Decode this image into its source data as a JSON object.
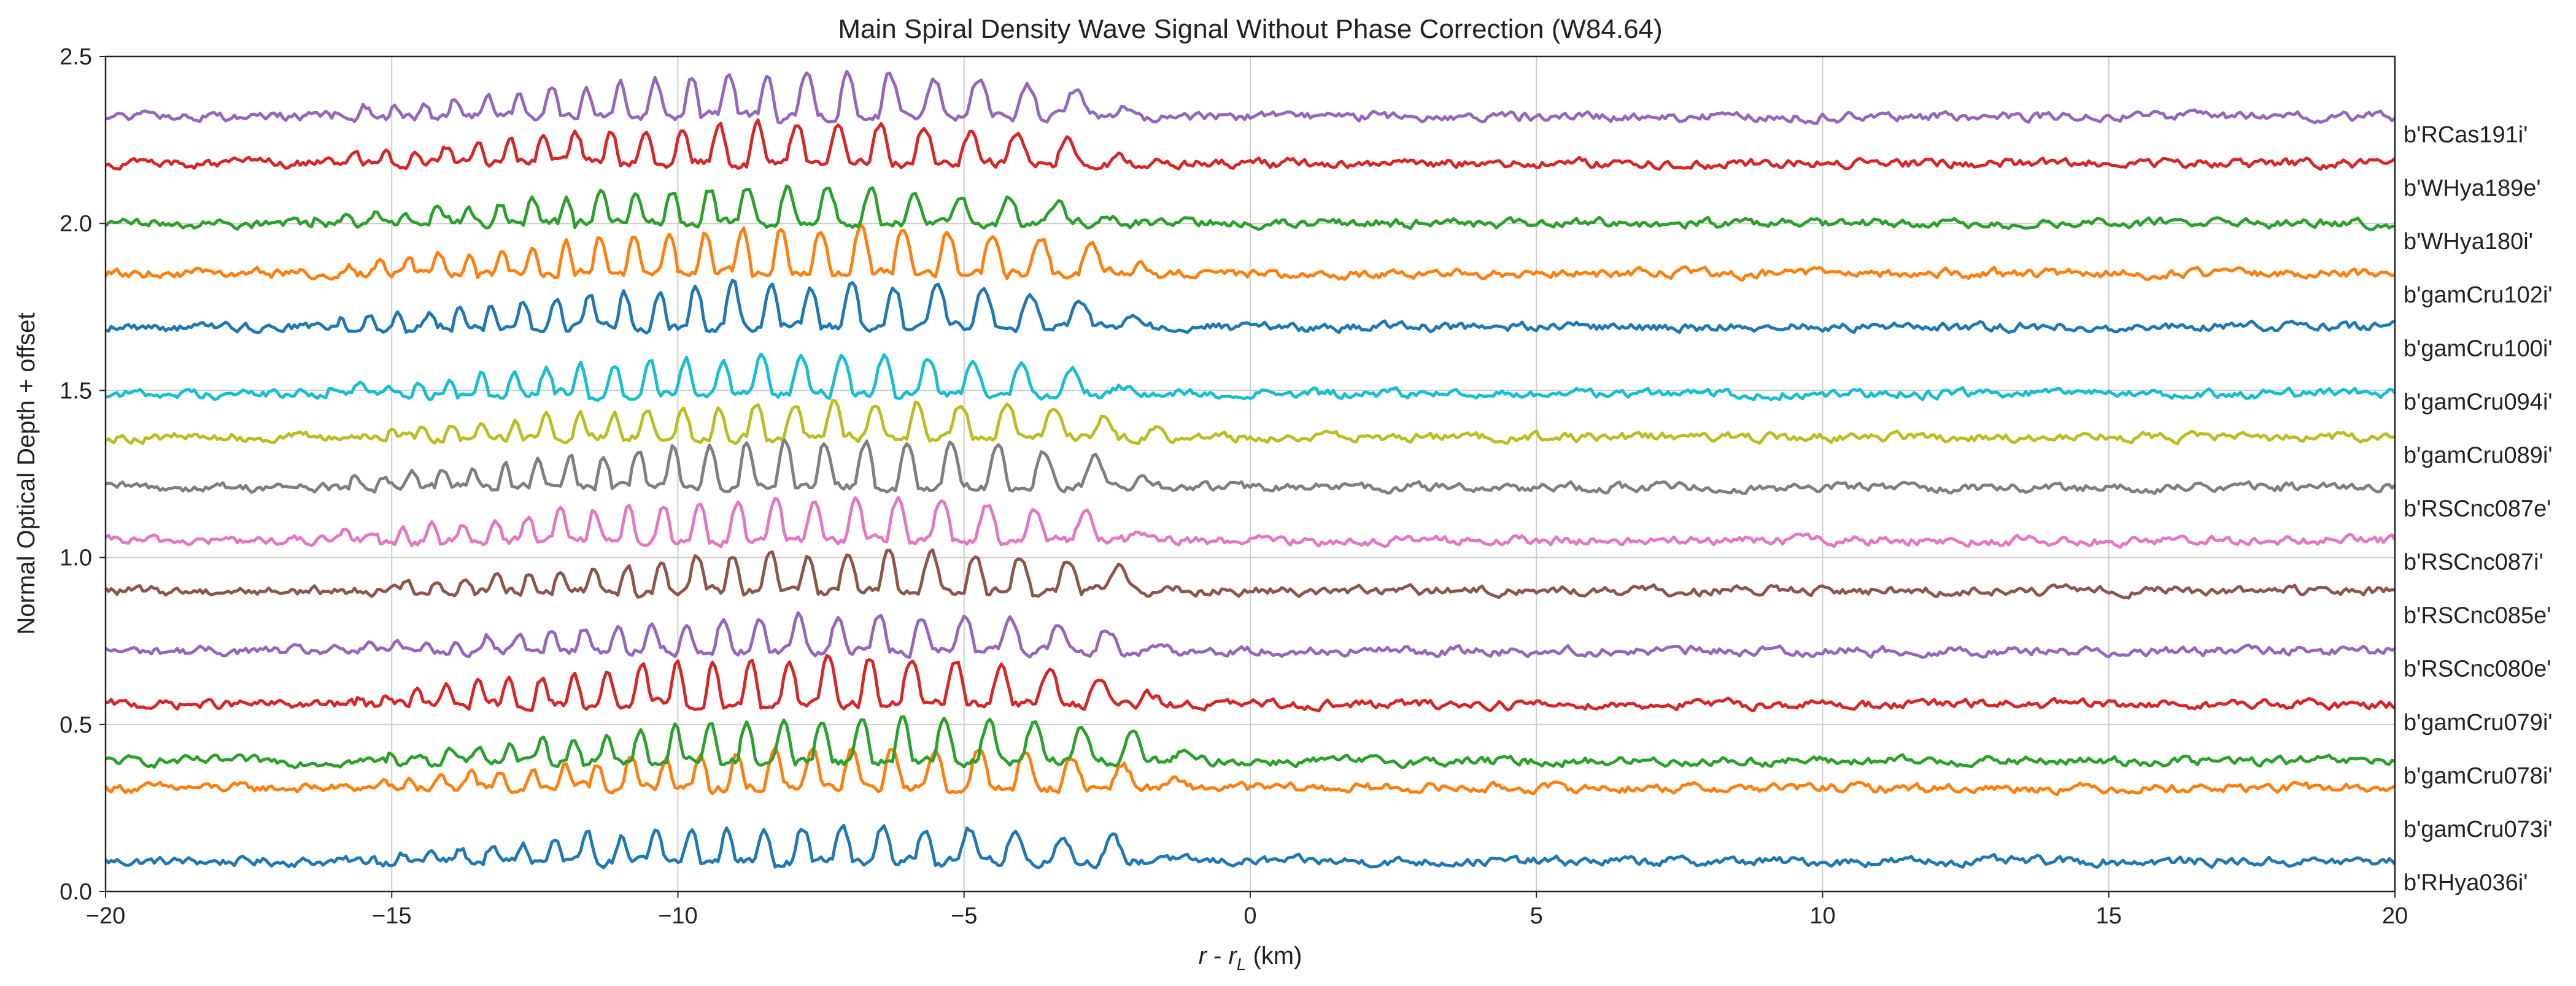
{
  "chart_data": {
    "type": "line",
    "title": "Main Spiral Density Wave Signal Without Phase Correction (W84.64)",
    "xlabel_italic_r": "r",
    "xlabel_middle": " - ",
    "xlabel_italic_rl": "r",
    "xlabel_sub": "L",
    "xlabel_unit": " (km)",
    "ylabel": "Normal Optical Depth + offset",
    "xlim": [
      -20,
      20
    ],
    "ylim": [
      0.0,
      2.5
    ],
    "x_ticks": [
      -20,
      -15,
      -10,
      -5,
      0,
      5,
      10,
      15,
      20
    ],
    "x_tick_labels": [
      "−20",
      "−15",
      "−10",
      "−5",
      "0",
      "5",
      "10",
      "15",
      "20"
    ],
    "y_ticks": [
      0.0,
      0.5,
      1.0,
      1.5,
      2.0,
      2.5
    ],
    "y_tick_labels": [
      "0.0",
      "0.5",
      "1.0",
      "1.5",
      "2.0",
      "2.5"
    ],
    "grid": true,
    "series": [
      {
        "name": "b'RHya036i'",
        "baseline": 0.09,
        "color": "#1f77b4"
      },
      {
        "name": "b'gamCru073i'",
        "baseline": 0.31,
        "color": "#ff7f0e"
      },
      {
        "name": "b'gamCru078i'",
        "baseline": 0.39,
        "color": "#2ca02c"
      },
      {
        "name": "b'gamCru079i'",
        "baseline": 0.56,
        "color": "#d62728"
      },
      {
        "name": "b'RSCnc080e'",
        "baseline": 0.72,
        "color": "#9467bd"
      },
      {
        "name": "b'RSCnc085e'",
        "baseline": 0.9,
        "color": "#8c564b"
      },
      {
        "name": "b'RSCnc087i'",
        "baseline": 1.05,
        "color": "#e377c2"
      },
      {
        "name": "b'RSCnc087e'",
        "baseline": 1.21,
        "color": "#7f7f7f"
      },
      {
        "name": "b'gamCru089i'",
        "baseline": 1.36,
        "color": "#bcbd22"
      },
      {
        "name": "b'gamCru094i'",
        "baseline": 1.49,
        "color": "#17becf"
      },
      {
        "name": "b'gamCru100i'",
        "baseline": 1.69,
        "color": "#1f77b4"
      },
      {
        "name": "b'gamCru102i'",
        "baseline": 1.85,
        "color": "#ff7f0e"
      },
      {
        "name": "b'WHya180i'",
        "baseline": 2.0,
        "color": "#2ca02c"
      },
      {
        "name": "b'WHya189e'",
        "baseline": 2.18,
        "color": "#d62728"
      },
      {
        "name": "b'RCas191i'",
        "baseline": 2.32,
        "color": "#9467bd"
      }
    ]
  }
}
